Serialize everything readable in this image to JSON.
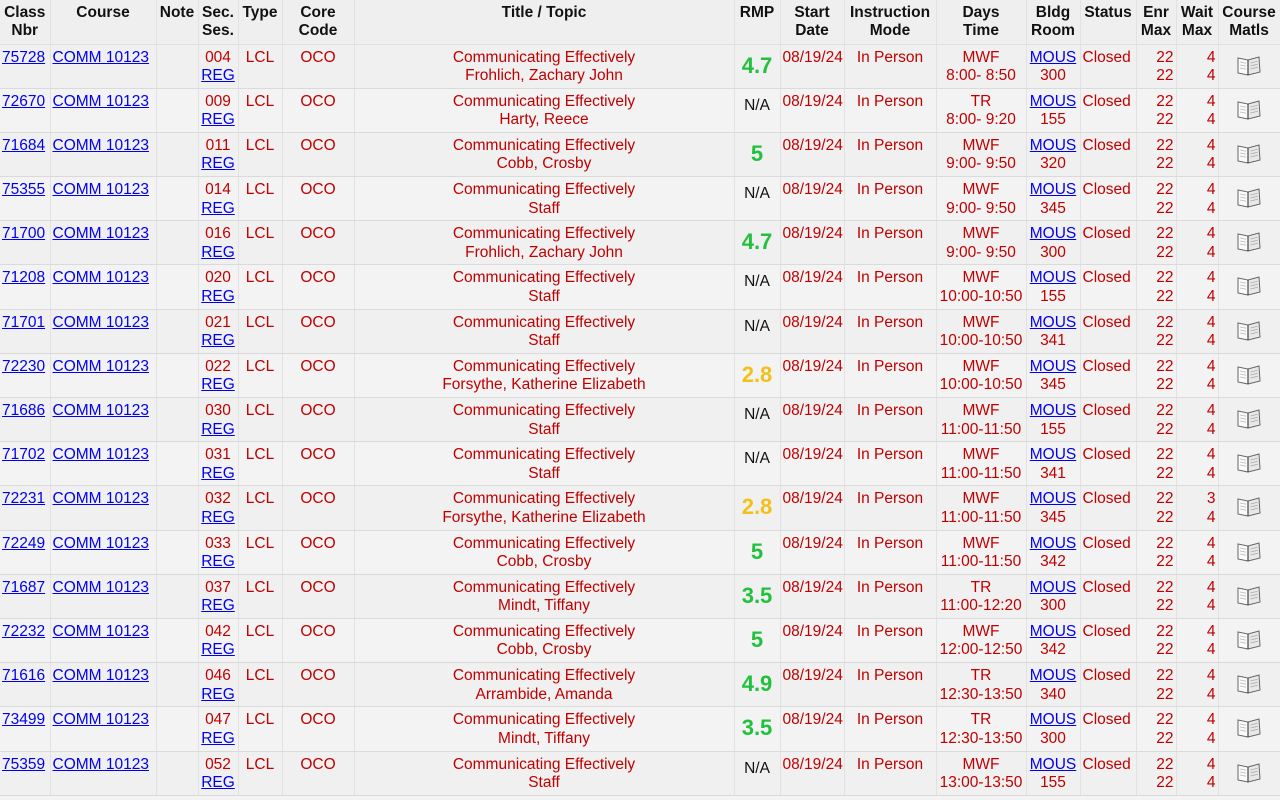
{
  "headers": {
    "class_nbr": [
      "Class",
      "Nbr"
    ],
    "course": "Course",
    "note": "Note",
    "sec": [
      "Sec.",
      "Ses."
    ],
    "type": "Type",
    "core": [
      "Core",
      "Code"
    ],
    "title": "Title / Topic",
    "rmp": "RMP",
    "start": [
      "Start",
      "Date"
    ],
    "mode": [
      "Instruction",
      "Mode"
    ],
    "days": [
      "Days",
      "Time"
    ],
    "bldg": [
      "Bldg",
      "Room"
    ],
    "status": "Status",
    "enr": [
      "Enr",
      "Max"
    ],
    "wait": [
      "Wait",
      "Max"
    ],
    "matls": [
      "Course",
      "Matls"
    ]
  },
  "colors": {
    "good": "#22c13d",
    "average": "#f2c019",
    "text": "#c00000",
    "link": "#0000ee"
  },
  "icon": "book-icon",
  "rows": [
    {
      "nbr": "75728",
      "course": "COMM 10123",
      "sec": "004",
      "ses": "REG",
      "type": "LCL",
      "core": "OCO",
      "title": "Communicating Effectively",
      "instructor": "Frohlich, Zachary John",
      "rmp": "4.7",
      "rmp_tier": "good",
      "start": "08/19/24",
      "mode": "In Person",
      "days": "MWF",
      "time": "8:00- 8:50",
      "bldg": "MOUS",
      "room": "300",
      "status": "Closed",
      "enr": "22",
      "max": "22",
      "wait": "4",
      "wait_max": "4"
    },
    {
      "nbr": "72670",
      "course": "COMM 10123",
      "sec": "009",
      "ses": "REG",
      "type": "LCL",
      "core": "OCO",
      "title": "Communicating Effectively",
      "instructor": "Harty, Reece",
      "rmp": "N/A",
      "rmp_tier": "na",
      "start": "08/19/24",
      "mode": "In Person",
      "days": "TR",
      "time": "8:00- 9:20",
      "bldg": "MOUS",
      "room": "155",
      "status": "Closed",
      "enr": "22",
      "max": "22",
      "wait": "4",
      "wait_max": "4"
    },
    {
      "nbr": "71684",
      "course": "COMM 10123",
      "sec": "011",
      "ses": "REG",
      "type": "LCL",
      "core": "OCO",
      "title": "Communicating Effectively",
      "instructor": "Cobb, Crosby",
      "rmp": "5",
      "rmp_tier": "good",
      "start": "08/19/24",
      "mode": "In Person",
      "days": "MWF",
      "time": "9:00- 9:50",
      "bldg": "MOUS",
      "room": "320",
      "status": "Closed",
      "enr": "22",
      "max": "22",
      "wait": "4",
      "wait_max": "4"
    },
    {
      "nbr": "75355",
      "course": "COMM 10123",
      "sec": "014",
      "ses": "REG",
      "type": "LCL",
      "core": "OCO",
      "title": "Communicating Effectively",
      "instructor": "Staff",
      "rmp": "N/A",
      "rmp_tier": "na",
      "start": "08/19/24",
      "mode": "In Person",
      "days": "MWF",
      "time": "9:00- 9:50",
      "bldg": "MOUS",
      "room": "345",
      "status": "Closed",
      "enr": "22",
      "max": "22",
      "wait": "4",
      "wait_max": "4"
    },
    {
      "nbr": "71700",
      "course": "COMM 10123",
      "sec": "016",
      "ses": "REG",
      "type": "LCL",
      "core": "OCO",
      "title": "Communicating Effectively",
      "instructor": "Frohlich, Zachary John",
      "rmp": "4.7",
      "rmp_tier": "good",
      "start": "08/19/24",
      "mode": "In Person",
      "days": "MWF",
      "time": "9:00- 9:50",
      "bldg": "MOUS",
      "room": "300",
      "status": "Closed",
      "enr": "22",
      "max": "22",
      "wait": "4",
      "wait_max": "4"
    },
    {
      "nbr": "71208",
      "course": "COMM 10123",
      "sec": "020",
      "ses": "REG",
      "type": "LCL",
      "core": "OCO",
      "title": "Communicating Effectively",
      "instructor": "Staff",
      "rmp": "N/A",
      "rmp_tier": "na",
      "start": "08/19/24",
      "mode": "In Person",
      "days": "MWF",
      "time": "10:00-10:50",
      "bldg": "MOUS",
      "room": "155",
      "status": "Closed",
      "enr": "22",
      "max": "22",
      "wait": "4",
      "wait_max": "4"
    },
    {
      "nbr": "71701",
      "course": "COMM 10123",
      "sec": "021",
      "ses": "REG",
      "type": "LCL",
      "core": "OCO",
      "title": "Communicating Effectively",
      "instructor": "Staff",
      "rmp": "N/A",
      "rmp_tier": "na",
      "start": "08/19/24",
      "mode": "In Person",
      "days": "MWF",
      "time": "10:00-10:50",
      "bldg": "MOUS",
      "room": "341",
      "status": "Closed",
      "enr": "22",
      "max": "22",
      "wait": "4",
      "wait_max": "4"
    },
    {
      "nbr": "72230",
      "course": "COMM 10123",
      "sec": "022",
      "ses": "REG",
      "type": "LCL",
      "core": "OCO",
      "title": "Communicating Effectively",
      "instructor": "Forsythe, Katherine Elizabeth",
      "rmp": "2.8",
      "rmp_tier": "average",
      "start": "08/19/24",
      "mode": "In Person",
      "days": "MWF",
      "time": "10:00-10:50",
      "bldg": "MOUS",
      "room": "345",
      "status": "Closed",
      "enr": "22",
      "max": "22",
      "wait": "4",
      "wait_max": "4"
    },
    {
      "nbr": "71686",
      "course": "COMM 10123",
      "sec": "030",
      "ses": "REG",
      "type": "LCL",
      "core": "OCO",
      "title": "Communicating Effectively",
      "instructor": "Staff",
      "rmp": "N/A",
      "rmp_tier": "na",
      "start": "08/19/24",
      "mode": "In Person",
      "days": "MWF",
      "time": "11:00-11:50",
      "bldg": "MOUS",
      "room": "155",
      "status": "Closed",
      "enr": "22",
      "max": "22",
      "wait": "4",
      "wait_max": "4"
    },
    {
      "nbr": "71702",
      "course": "COMM 10123",
      "sec": "031",
      "ses": "REG",
      "type": "LCL",
      "core": "OCO",
      "title": "Communicating Effectively",
      "instructor": "Staff",
      "rmp": "N/A",
      "rmp_tier": "na",
      "start": "08/19/24",
      "mode": "In Person",
      "days": "MWF",
      "time": "11:00-11:50",
      "bldg": "MOUS",
      "room": "341",
      "status": "Closed",
      "enr": "22",
      "max": "22",
      "wait": "4",
      "wait_max": "4"
    },
    {
      "nbr": "72231",
      "course": "COMM 10123",
      "sec": "032",
      "ses": "REG",
      "type": "LCL",
      "core": "OCO",
      "title": "Communicating Effectively",
      "instructor": "Forsythe, Katherine Elizabeth",
      "rmp": "2.8",
      "rmp_tier": "average",
      "start": "08/19/24",
      "mode": "In Person",
      "days": "MWF",
      "time": "11:00-11:50",
      "bldg": "MOUS",
      "room": "345",
      "status": "Closed",
      "enr": "22",
      "max": "22",
      "wait": "3",
      "wait_max": "4"
    },
    {
      "nbr": "72249",
      "course": "COMM 10123",
      "sec": "033",
      "ses": "REG",
      "type": "LCL",
      "core": "OCO",
      "title": "Communicating Effectively",
      "instructor": "Cobb, Crosby",
      "rmp": "5",
      "rmp_tier": "good",
      "start": "08/19/24",
      "mode": "In Person",
      "days": "MWF",
      "time": "11:00-11:50",
      "bldg": "MOUS",
      "room": "342",
      "status": "Closed",
      "enr": "22",
      "max": "22",
      "wait": "4",
      "wait_max": "4"
    },
    {
      "nbr": "71687",
      "course": "COMM 10123",
      "sec": "037",
      "ses": "REG",
      "type": "LCL",
      "core": "OCO",
      "title": "Communicating Effectively",
      "instructor": "Mindt, Tiffany",
      "rmp": "3.5",
      "rmp_tier": "good",
      "start": "08/19/24",
      "mode": "In Person",
      "days": "TR",
      "time": "11:00-12:20",
      "bldg": "MOUS",
      "room": "300",
      "status": "Closed",
      "enr": "22",
      "max": "22",
      "wait": "4",
      "wait_max": "4"
    },
    {
      "nbr": "72232",
      "course": "COMM 10123",
      "sec": "042",
      "ses": "REG",
      "type": "LCL",
      "core": "OCO",
      "title": "Communicating Effectively",
      "instructor": "Cobb, Crosby",
      "rmp": "5",
      "rmp_tier": "good",
      "start": "08/19/24",
      "mode": "In Person",
      "days": "MWF",
      "time": "12:00-12:50",
      "bldg": "MOUS",
      "room": "342",
      "status": "Closed",
      "enr": "22",
      "max": "22",
      "wait": "4",
      "wait_max": "4"
    },
    {
      "nbr": "71616",
      "course": "COMM 10123",
      "sec": "046",
      "ses": "REG",
      "type": "LCL",
      "core": "OCO",
      "title": "Communicating Effectively",
      "instructor": "Arrambide, Amanda",
      "rmp": "4.9",
      "rmp_tier": "good",
      "start": "08/19/24",
      "mode": "In Person",
      "days": "TR",
      "time": "12:30-13:50",
      "bldg": "MOUS",
      "room": "340",
      "status": "Closed",
      "enr": "22",
      "max": "22",
      "wait": "4",
      "wait_max": "4"
    },
    {
      "nbr": "73499",
      "course": "COMM 10123",
      "sec": "047",
      "ses": "REG",
      "type": "LCL",
      "core": "OCO",
      "title": "Communicating Effectively",
      "instructor": "Mindt, Tiffany",
      "rmp": "3.5",
      "rmp_tier": "good",
      "start": "08/19/24",
      "mode": "In Person",
      "days": "TR",
      "time": "12:30-13:50",
      "bldg": "MOUS",
      "room": "300",
      "status": "Closed",
      "enr": "22",
      "max": "22",
      "wait": "4",
      "wait_max": "4"
    },
    {
      "nbr": "75359",
      "course": "COMM 10123",
      "sec": "052",
      "ses": "REG",
      "type": "LCL",
      "core": "OCO",
      "title": "Communicating Effectively",
      "instructor": "Staff",
      "rmp": "N/A",
      "rmp_tier": "na",
      "start": "08/19/24",
      "mode": "In Person",
      "days": "MWF",
      "time": "13:00-13:50",
      "bldg": "MOUS",
      "room": "155",
      "status": "Closed",
      "enr": "22",
      "max": "22",
      "wait": "4",
      "wait_max": "4"
    }
  ]
}
